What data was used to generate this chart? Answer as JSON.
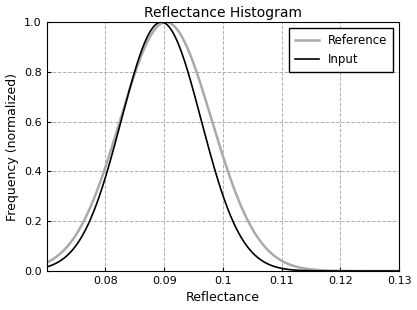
{
  "title": "Reflectance Histogram",
  "xlabel": "Reflectance",
  "ylabel": "Frequency (normalized)",
  "xlim": [
    0.07,
    0.13
  ],
  "ylim": [
    0,
    1.0
  ],
  "xticks": [
    0.08,
    0.09,
    0.1,
    0.11,
    0.12,
    0.13
  ],
  "xtick_labels": [
    "0.08",
    "0.09",
    "0.1",
    "0.11",
    "0.12",
    "0.13"
  ],
  "yticks": [
    0,
    0.2,
    0.4,
    0.6,
    0.8,
    1.0
  ],
  "input_color": "#000000",
  "reference_color": "#aaaaaa",
  "input_linewidth": 1.2,
  "reference_linewidth": 1.8,
  "input_mean": 0.0895,
  "input_std": 0.0068,
  "ref_mean": 0.0903,
  "ref_std": 0.0078,
  "legend_labels": [
    "Input",
    "Reference"
  ],
  "background_color": "#ffffff",
  "grid_color": "#b0b0b0",
  "grid_linestyle": "--",
  "grid_alpha": 1.0,
  "figsize": [
    4.17,
    3.1
  ],
  "dpi": 100
}
